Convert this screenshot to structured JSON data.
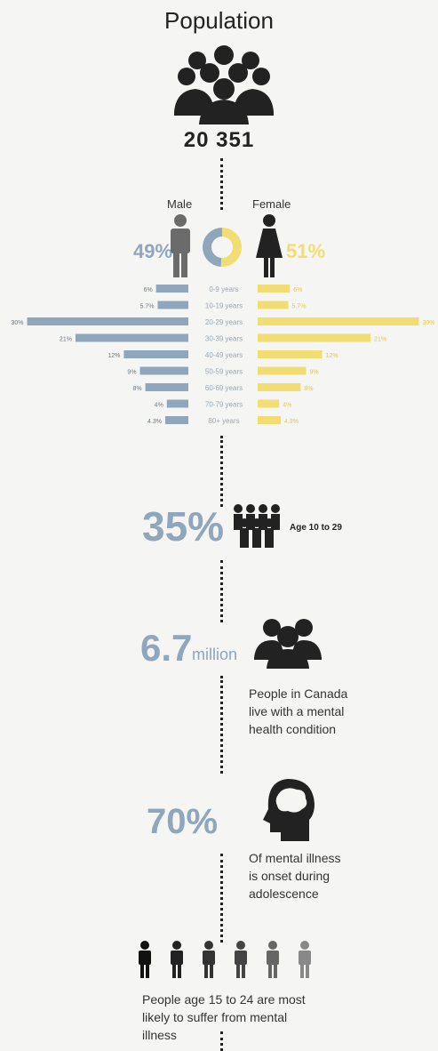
{
  "header": {
    "title": "Population",
    "total": "20 351"
  },
  "legend": {
    "male": "Male",
    "female": "Female",
    "male_pct": "49%",
    "female_pct": "51%"
  },
  "colors": {
    "male": "#8fa6bd",
    "female": "#f2dd72",
    "dark": "#222222"
  },
  "chart_data": {
    "type": "bar",
    "categories": [
      "0-9 years",
      "10-19 years",
      "20-29 years",
      "30-39 years",
      "40-49 years",
      "50-59 years",
      "60-69 years",
      "70-79 years",
      "80+ years"
    ],
    "series": [
      {
        "name": "Male",
        "values": [
          6,
          5.7,
          30,
          21,
          12,
          9,
          8,
          4,
          4.3
        ],
        "labels": [
          "6%",
          "5.7%",
          "30%",
          "21%",
          "12%",
          "9%",
          "8%",
          "4%",
          "4.3%"
        ]
      },
      {
        "name": "Female",
        "values": [
          6,
          5.7,
          30,
          21,
          12,
          9,
          8,
          4,
          4.3
        ],
        "labels": [
          "6%",
          "5.7%",
          "30%",
          "21%",
          "12%",
          "9%",
          "8%",
          "4%",
          "4.3%"
        ]
      }
    ],
    "pie": {
      "male": 49,
      "female": 51
    }
  },
  "stats": {
    "youth_pct": "35%",
    "youth_label": "Age 10 to 29",
    "million_value": "6.7",
    "million_unit": "million",
    "million_note_1": "People in Canada",
    "million_note_2": "live with a mental",
    "million_note_3": "health condition",
    "onset_pct": "70%",
    "onset_note_1": "Of mental illness",
    "onset_note_2": "is onset during",
    "onset_note_3": "adolescence",
    "people_note_1": "People age 15 to 24 are most",
    "people_note_2": "likely to suffer from mental",
    "people_note_3": "illness"
  }
}
